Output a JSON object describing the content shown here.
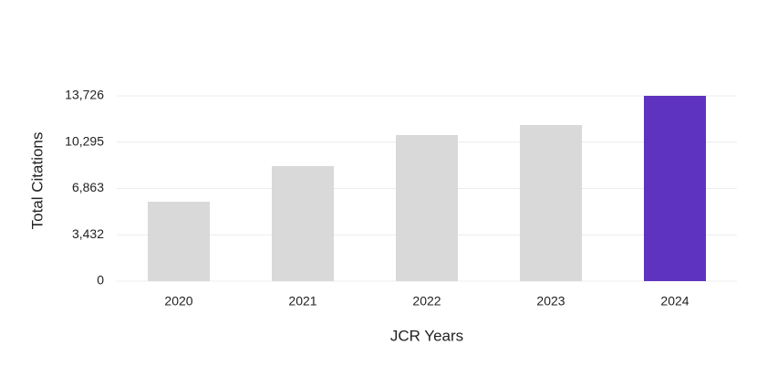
{
  "chart_data": {
    "type": "bar",
    "x_label": "JCR Years",
    "y_label": "Total Citations",
    "categories": [
      "2020",
      "2021",
      "2022",
      "2023",
      "2024"
    ],
    "values": [
      5880,
      8520,
      10820,
      11560,
      13726
    ],
    "colors": [
      "#d9d9d9",
      "#d9d9d9",
      "#d9d9d9",
      "#d9d9d9",
      "#5e33bf"
    ],
    "ylim": [
      0,
      13726
    ],
    "yticks": [
      0,
      {
        "value": 3432,
        "label": "3,432"
      },
      {
        "value": 6863,
        "label": "6,863"
      },
      {
        "value": 10295,
        "label": "10,295"
      },
      {
        "value": 13726,
        "label": "13,726"
      }
    ],
    "grid": true
  }
}
